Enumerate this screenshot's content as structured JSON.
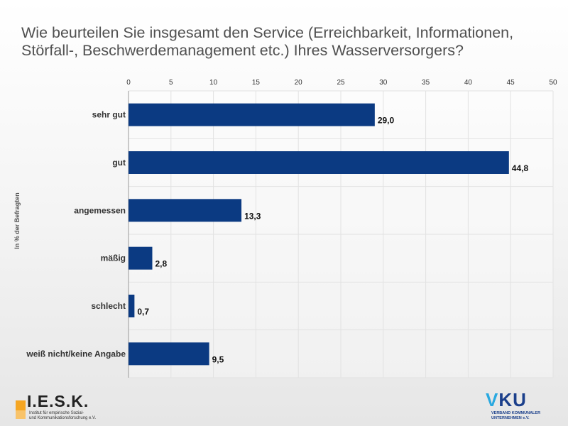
{
  "chart_data": {
    "type": "bar",
    "orientation": "horizontal",
    "title": "Wie beurteilen Sie insgesamt den Service (Erreichbarkeit, Informationen, Störfall-, Beschwerdemanagement etc.) Ihres Wasserversorgers?",
    "ylabel": "In % der Befragten",
    "xlabel": "",
    "xlim": [
      0,
      50
    ],
    "xticks": [
      0,
      5,
      10,
      15,
      20,
      25,
      30,
      35,
      40,
      45,
      50
    ],
    "x_axis_position": "top",
    "grid": true,
    "categories": [
      "sehr gut",
      "gut",
      "angemessen",
      "mäßig",
      "schlecht",
      "weiß nicht/keine Angabe"
    ],
    "values": [
      29.0,
      44.8,
      13.3,
      2.8,
      0.7,
      9.5
    ],
    "value_labels": [
      "29,0",
      "44,8",
      "13,3",
      "2,8",
      "0,7",
      "9,5"
    ],
    "bar_color": "#0b3a82"
  },
  "logos": {
    "iesk": {
      "name": "I.E.S.K.",
      "subtitle_line1": "Institut für empirische Sozial-",
      "subtitle_line2": "und Kommunikationsforschung e.V."
    },
    "vku": {
      "name_v": "V",
      "name_ku": "KU",
      "subtitle_line1": "VERBAND KOMMUNALER",
      "subtitle_line2": "UNTERNEHMEN e.V."
    }
  }
}
